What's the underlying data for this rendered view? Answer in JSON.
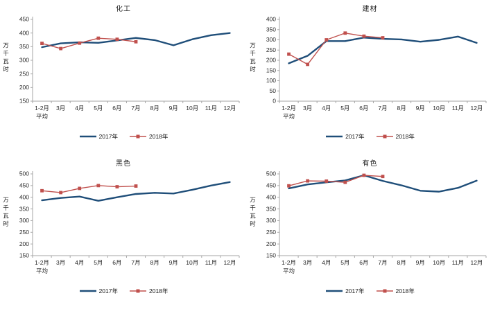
{
  "colors": {
    "axis": "#a6a6a6",
    "text": "#262626",
    "series2017": "#1f4e79",
    "series2018": "#c0504d"
  },
  "chart_data": [
    {
      "type": "line",
      "title": "化工",
      "ylabel": "万千瓦时",
      "ylim": [
        150,
        450
      ],
      "ytick_step": 50,
      "grid": false,
      "legend_position": "bottom",
      "categories": [
        "1-2月",
        "3月",
        "4月",
        "5月",
        "6月",
        "7月",
        "8月",
        "9月",
        "10月",
        "11月",
        "12月"
      ],
      "first_category_line2": "平均",
      "series": [
        {
          "name": "2017年",
          "color": "#1f4e79",
          "marker": "none",
          "values": [
            348,
            362,
            366,
            364,
            373,
            382,
            374,
            355,
            377,
            392,
            400
          ]
        },
        {
          "name": "2018年",
          "color": "#c0504d",
          "marker": "square",
          "values": [
            362,
            343,
            363,
            381,
            377,
            368
          ]
        }
      ]
    },
    {
      "type": "line",
      "title": "建材",
      "ylabel": "万千瓦时",
      "ylim": [
        0,
        400
      ],
      "ytick_step": 50,
      "grid": false,
      "legend_position": "bottom",
      "categories": [
        "1-2月",
        "3月",
        "4月",
        "5月",
        "6月",
        "7月",
        "8月",
        "9月",
        "10月",
        "11月",
        "12月"
      ],
      "first_category_line2": "平均",
      "series": [
        {
          "name": "2017年",
          "color": "#1f4e79",
          "marker": "none",
          "values": [
            185,
            222,
            294,
            294,
            311,
            305,
            302,
            291,
            300,
            316,
            285
          ]
        },
        {
          "name": "2018年",
          "color": "#c0504d",
          "marker": "square",
          "values": [
            230,
            180,
            300,
            333,
            318,
            310
          ]
        }
      ]
    },
    {
      "type": "line",
      "title": "黑色",
      "ylabel": "万千瓦时",
      "ylim": [
        150,
        500
      ],
      "ytick_step": 50,
      "grid": false,
      "legend_position": "bottom",
      "categories": [
        "1-2月",
        "3月",
        "4月",
        "5月",
        "6月",
        "7月",
        "8月",
        "9月",
        "10月",
        "11月",
        "12月"
      ],
      "first_category_line2": "平均",
      "series": [
        {
          "name": "2017年",
          "color": "#1f4e79",
          "marker": "none",
          "values": [
            387,
            397,
            403,
            385,
            400,
            414,
            419,
            416,
            432,
            450,
            465
          ]
        },
        {
          "name": "2018年",
          "color": "#c0504d",
          "marker": "square",
          "values": [
            428,
            420,
            438,
            450,
            445,
            448
          ]
        }
      ]
    },
    {
      "type": "line",
      "title": "有色",
      "ylabel": "万千瓦时",
      "ylim": [
        150,
        500
      ],
      "ytick_step": 50,
      "grid": false,
      "legend_position": "bottom",
      "categories": [
        "1-2月",
        "3月",
        "4月",
        "5月",
        "6月",
        "7月",
        "8月",
        "9月",
        "10月",
        "11月",
        "12月"
      ],
      "first_category_line2": "平均",
      "series": [
        {
          "name": "2017年",
          "color": "#1f4e79",
          "marker": "none",
          "values": [
            438,
            455,
            464,
            472,
            494,
            470,
            451,
            428,
            424,
            440,
            471
          ]
        },
        {
          "name": "2018年",
          "color": "#c0504d",
          "marker": "square",
          "values": [
            449,
            470,
            469,
            464,
            494,
            489
          ]
        }
      ]
    }
  ]
}
